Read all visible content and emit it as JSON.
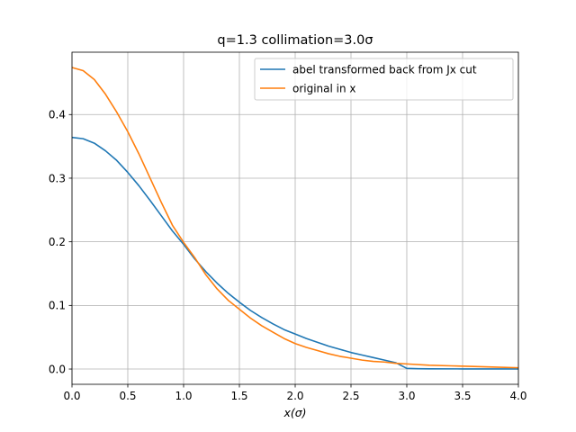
{
  "chart_data": {
    "type": "line",
    "title": "q=1.3 collimation=3.0σ",
    "xlabel": "x(σ)",
    "ylabel": "",
    "xlim": [
      0,
      4
    ],
    "ylim": [
      -0.024,
      0.498
    ],
    "xticks": [
      0,
      0.5,
      1,
      1.5,
      2,
      2.5,
      3,
      3.5,
      4
    ],
    "xtick_labels": [
      "0.0",
      "0.5",
      "1.0",
      "1.5",
      "2.0",
      "2.5",
      "3.0",
      "3.5",
      "4.0"
    ],
    "yticks": [
      0,
      0.1,
      0.2,
      0.3,
      0.4
    ],
    "ytick_labels": [
      "0.0",
      "0.1",
      "0.2",
      "0.3",
      "0.4"
    ],
    "grid": true,
    "legend_position": "top-right",
    "series": [
      {
        "name": "abel transformed back from Jx cut",
        "color": "#1f77b4",
        "x": [
          0,
          0.1,
          0.2,
          0.3,
          0.4,
          0.5,
          0.6,
          0.7,
          0.8,
          0.9,
          1.0,
          1.1,
          1.2,
          1.3,
          1.4,
          1.5,
          1.6,
          1.7,
          1.8,
          1.9,
          2.0,
          2.1,
          2.2,
          2.3,
          2.4,
          2.5,
          2.6,
          2.7,
          2.8,
          2.9,
          3.0,
          3.1,
          3.2,
          3.5,
          4.0
        ],
        "y": [
          0.364,
          0.362,
          0.355,
          0.343,
          0.328,
          0.309,
          0.288,
          0.265,
          0.241,
          0.217,
          0.196,
          0.173,
          0.153,
          0.135,
          0.119,
          0.105,
          0.092,
          0.081,
          0.071,
          0.062,
          0.055,
          0.048,
          0.042,
          0.036,
          0.031,
          0.026,
          0.022,
          0.018,
          0.014,
          0.01,
          0.001,
          0.0005,
          0.0003,
          0.0002,
          0.0001
        ]
      },
      {
        "name": "original in x",
        "color": "#ff7f0e",
        "x": [
          0,
          0.1,
          0.2,
          0.3,
          0.4,
          0.5,
          0.6,
          0.7,
          0.8,
          0.9,
          1.0,
          1.1,
          1.2,
          1.3,
          1.4,
          1.5,
          1.6,
          1.7,
          1.8,
          1.9,
          2.0,
          2.1,
          2.2,
          2.3,
          2.4,
          2.5,
          2.6,
          2.7,
          2.8,
          2.9,
          3.0,
          3.2,
          3.4,
          3.6,
          3.8,
          4.0
        ],
        "y": [
          0.474,
          0.469,
          0.455,
          0.432,
          0.404,
          0.373,
          0.338,
          0.3,
          0.262,
          0.226,
          0.199,
          0.175,
          0.148,
          0.126,
          0.108,
          0.094,
          0.08,
          0.068,
          0.058,
          0.048,
          0.04,
          0.034,
          0.029,
          0.024,
          0.02,
          0.017,
          0.014,
          0.012,
          0.011,
          0.009,
          0.008,
          0.006,
          0.005,
          0.004,
          0.003,
          0.002
        ]
      }
    ]
  }
}
